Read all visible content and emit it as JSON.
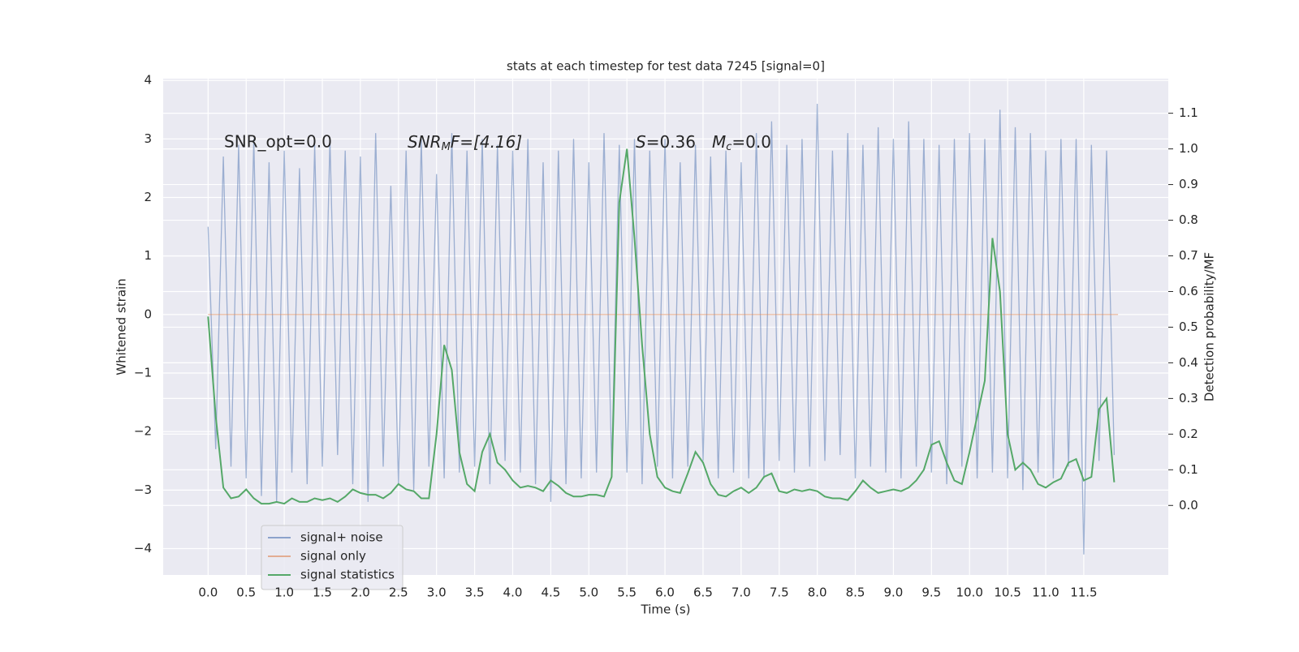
{
  "chart_data": {
    "type": "line",
    "title": "stats at each timestep for test data 7245 [signal=0]",
    "xlabel": "Time (s)",
    "ylabel": "Whitened strain",
    "y2label": "Detection probability/MF",
    "annotations": [
      "SNR_opt=0.0",
      [
        "SNR",
        "M",
        "F=[4.16]"
      ],
      [
        "S",
        "=0.36"
      ],
      [
        "M",
        "c",
        "=0.0"
      ]
    ],
    "xlim": [
      -0.59,
      12.61
    ],
    "ylim": [
      -4.45,
      4.03
    ],
    "y2lim": [
      -0.195,
      1.197
    ],
    "xticks": [
      {
        "value": 0,
        "label": "0.0"
      },
      0.5,
      {
        "value": 1,
        "label": "1.0"
      },
      1.5,
      {
        "value": 2,
        "label": "2.0"
      },
      2.5,
      {
        "value": 3,
        "label": "3.0"
      },
      3.5,
      {
        "value": 4,
        "label": "4.0"
      },
      4.5,
      {
        "value": 5,
        "label": "5.0"
      },
      5.5,
      {
        "value": 6,
        "label": "6.0"
      },
      6.5,
      {
        "value": 7,
        "label": "7.0"
      },
      7.5,
      {
        "value": 8,
        "label": "8.0"
      },
      8.5,
      {
        "value": 9,
        "label": "9.0"
      },
      9.5,
      {
        "value": 10,
        "label": "10.0"
      },
      10.5,
      {
        "value": 11,
        "label": "11.0"
      },
      11.5
    ],
    "yticks": [
      {
        "value": -4,
        "label": "−4"
      },
      {
        "value": -3,
        "label": "−3"
      },
      {
        "value": -2,
        "label": "−2"
      },
      {
        "value": -1,
        "label": "−1"
      },
      0,
      1,
      2,
      3,
      4
    ],
    "y2ticks": [
      {
        "value": 0,
        "label": "0.0"
      },
      0.1,
      0.2,
      0.3,
      0.4,
      0.5,
      0.6,
      0.7,
      0.8,
      0.9,
      {
        "value": 1,
        "label": "1.0"
      },
      1.1
    ],
    "grid": true,
    "legend": "lower left",
    "series": [
      {
        "name": "signal+ noise",
        "color": "#4c72b0",
        "x": [
          0.0,
          0.1,
          0.2,
          0.3,
          0.4,
          0.5,
          0.6,
          0.7,
          0.8,
          0.9,
          1.0,
          1.1,
          1.2,
          1.3,
          1.4,
          1.5,
          1.6,
          1.7,
          1.8,
          1.9,
          2.0,
          2.1,
          2.2,
          2.3,
          2.4,
          2.5,
          2.6,
          2.7,
          2.8,
          2.9,
          3.0,
          3.1,
          3.2,
          3.3,
          3.4,
          3.5,
          3.6,
          3.7,
          3.8,
          3.9,
          4.0,
          4.1,
          4.2,
          4.3,
          4.4,
          4.5,
          4.6,
          4.7,
          4.8,
          4.9,
          5.0,
          5.1,
          5.2,
          5.3,
          5.4,
          5.5,
          5.6,
          5.7,
          5.8,
          5.9,
          6.0,
          6.1,
          6.2,
          6.3,
          6.4,
          6.5,
          6.6,
          6.7,
          6.8,
          6.9,
          7.0,
          7.1,
          7.2,
          7.3,
          7.4,
          7.5,
          7.6,
          7.7,
          7.8,
          7.9,
          8.0,
          8.1,
          8.2,
          8.3,
          8.4,
          8.5,
          8.6,
          8.7,
          8.8,
          8.9,
          9.0,
          9.1,
          9.2,
          9.3,
          9.4,
          9.5,
          9.6,
          9.7,
          9.8,
          9.9,
          10.0,
          10.1,
          10.2,
          10.3,
          10.4,
          10.5,
          10.6,
          10.7,
          10.8,
          10.9,
          11.0,
          11.1,
          11.2,
          11.3,
          11.4,
          11.5,
          11.6,
          11.7,
          11.8,
          11.9
        ],
        "values": [
          1.5,
          -2.3,
          2.7,
          -2.6,
          2.9,
          -2.8,
          3.0,
          -3.1,
          2.6,
          -3.2,
          2.8,
          -2.7,
          2.5,
          -2.9,
          2.9,
          -2.6,
          3.0,
          -2.4,
          2.8,
          -2.9,
          2.7,
          -3.2,
          3.1,
          -2.6,
          2.2,
          -2.9,
          2.8,
          -3.0,
          3.0,
          -2.6,
          2.4,
          -2.8,
          3.1,
          -2.7,
          2.8,
          -2.6,
          3.0,
          -2.9,
          2.9,
          -2.5,
          2.8,
          -2.7,
          3.0,
          -2.9,
          2.6,
          -3.2,
          2.8,
          -2.9,
          3.0,
          -2.8,
          2.6,
          -2.7,
          3.1,
          -2.6,
          2.9,
          -2.7,
          3.0,
          -2.9,
          2.8,
          -2.6,
          3.0,
          -2.8,
          2.6,
          -2.6,
          2.9,
          -2.5,
          2.7,
          -2.8,
          2.8,
          -2.7,
          2.6,
          -2.8,
          3.1,
          -2.8,
          3.3,
          -2.5,
          2.9,
          -2.7,
          3.0,
          -2.6,
          3.6,
          -2.5,
          2.8,
          -2.4,
          3.1,
          -2.8,
          2.9,
          -2.6,
          3.2,
          -2.7,
          3.0,
          -2.8,
          3.3,
          -2.6,
          3.0,
          -2.7,
          2.9,
          -2.9,
          3.0,
          -2.6,
          3.1,
          -2.8,
          3.0,
          -2.7,
          3.5,
          -2.8,
          3.2,
          -3.0,
          3.1,
          -2.7,
          2.8,
          -2.8,
          3.0,
          -2.6,
          3.0,
          -4.1,
          2.9,
          -2.5,
          2.8,
          -2.4
        ]
      },
      {
        "name": "signal only",
        "color": "#dd8452",
        "x": [
          0.0,
          11.95
        ],
        "values": [
          0,
          0
        ]
      },
      {
        "name": "signal statistics",
        "color": "#55a868",
        "axis": "y2",
        "x": [
          0.0,
          0.1,
          0.2,
          0.3,
          0.4,
          0.5,
          0.6,
          0.7,
          0.8,
          0.9,
          1.0,
          1.1,
          1.2,
          1.3,
          1.4,
          1.5,
          1.6,
          1.7,
          1.8,
          1.9,
          2.0,
          2.1,
          2.2,
          2.3,
          2.4,
          2.5,
          2.6,
          2.7,
          2.8,
          2.9,
          3.0,
          3.1,
          3.2,
          3.3,
          3.4,
          3.5,
          3.6,
          3.7,
          3.8,
          3.9,
          4.0,
          4.1,
          4.2,
          4.3,
          4.4,
          4.5,
          4.6,
          4.7,
          4.8,
          4.9,
          5.0,
          5.1,
          5.2,
          5.3,
          5.4,
          5.5,
          5.6,
          5.7,
          5.8,
          5.9,
          6.0,
          6.1,
          6.2,
          6.3,
          6.4,
          6.5,
          6.6,
          6.7,
          6.8,
          6.9,
          7.0,
          7.1,
          7.2,
          7.3,
          7.4,
          7.5,
          7.6,
          7.7,
          7.8,
          7.9,
          8.0,
          8.1,
          8.2,
          8.3,
          8.4,
          8.5,
          8.6,
          8.7,
          8.8,
          8.9,
          9.0,
          9.1,
          9.2,
          9.3,
          9.4,
          9.5,
          9.6,
          9.7,
          9.8,
          9.9,
          10.0,
          10.1,
          10.2,
          10.3,
          10.4,
          10.5,
          10.6,
          10.7,
          10.8,
          10.9,
          11.0,
          11.1,
          11.2,
          11.3,
          11.4,
          11.5,
          11.6,
          11.7,
          11.8,
          11.9
        ],
        "values": [
          0.53,
          0.25,
          0.05,
          0.02,
          0.025,
          0.045,
          0.02,
          0.005,
          0.005,
          0.01,
          0.005,
          0.02,
          0.01,
          0.01,
          0.02,
          0.015,
          0.02,
          0.01,
          0.025,
          0.045,
          0.035,
          0.03,
          0.03,
          0.02,
          0.035,
          0.06,
          0.045,
          0.04,
          0.02,
          0.02,
          0.2,
          0.45,
          0.38,
          0.15,
          0.06,
          0.04,
          0.15,
          0.2,
          0.12,
          0.1,
          0.07,
          0.05,
          0.055,
          0.05,
          0.04,
          0.07,
          0.055,
          0.035,
          0.025,
          0.025,
          0.03,
          0.03,
          0.025,
          0.08,
          0.85,
          1.0,
          0.75,
          0.45,
          0.2,
          0.08,
          0.05,
          0.04,
          0.035,
          0.09,
          0.15,
          0.12,
          0.06,
          0.03,
          0.025,
          0.04,
          0.05,
          0.035,
          0.05,
          0.08,
          0.09,
          0.04,
          0.035,
          0.045,
          0.04,
          0.045,
          0.04,
          0.025,
          0.02,
          0.02,
          0.015,
          0.04,
          0.07,
          0.05,
          0.035,
          0.04,
          0.045,
          0.04,
          0.05,
          0.07,
          0.1,
          0.17,
          0.18,
          0.12,
          0.07,
          0.06,
          0.15,
          0.25,
          0.35,
          0.75,
          0.6,
          0.2,
          0.1,
          0.12,
          0.1,
          0.06,
          0.05,
          0.065,
          0.075,
          0.12,
          0.13,
          0.07,
          0.08,
          0.27,
          0.3,
          0.065
        ]
      }
    ]
  }
}
